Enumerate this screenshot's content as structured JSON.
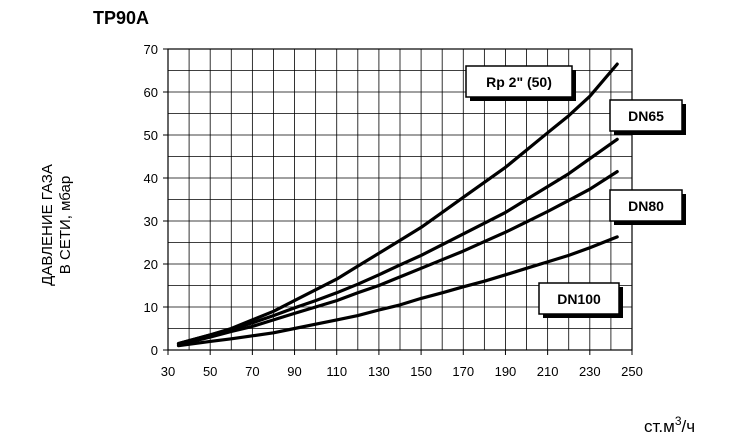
{
  "chart_data": {
    "type": "line",
    "title": "TP90A",
    "ylabel_lines": [
      "ДАВЛЕНИЕ ГАЗА",
      "В СЕТИ, мбар"
    ],
    "xlabel": "ст.м",
    "xlabel_sup": "3",
    "xlabel_tail": "/ч",
    "xlim": [
      30,
      250
    ],
    "ylim": [
      0,
      70
    ],
    "grid": true,
    "xticks": [
      30,
      50,
      70,
      90,
      110,
      130,
      150,
      170,
      190,
      210,
      230,
      250
    ],
    "xtick_labels": [
      "30",
      "50",
      "70",
      "90",
      "110",
      "130",
      "150",
      "170",
      "190",
      "210",
      "230",
      "250"
    ],
    "yticks": [
      0,
      10,
      20,
      30,
      40,
      50,
      60,
      70
    ],
    "ytick_labels": [
      "0",
      "10",
      "20",
      "30",
      "40",
      "50",
      "60",
      "70"
    ],
    "series": [
      {
        "name": "Rp 2\" (50)",
        "x": [
          35,
          50,
          60,
          70,
          80,
          90,
          100,
          110,
          120,
          130,
          140,
          150,
          160,
          170,
          180,
          190,
          200,
          210,
          220,
          230,
          243
        ],
        "y": [
          1.5,
          3.5,
          5,
          7,
          9,
          11.5,
          14,
          16.5,
          19.5,
          22.5,
          25.5,
          28.5,
          32,
          35.5,
          39,
          42.5,
          46.5,
          50.5,
          54.5,
          59,
          66.5
        ]
      },
      {
        "name": "DN65",
        "x": [
          35,
          50,
          60,
          70,
          80,
          90,
          100,
          110,
          120,
          130,
          140,
          150,
          160,
          170,
          180,
          190,
          200,
          210,
          220,
          230,
          243
        ],
        "y": [
          1.5,
          3.5,
          4.8,
          6.3,
          8,
          9.8,
          11.5,
          13.3,
          15.3,
          17.5,
          19.8,
          22,
          24.5,
          27,
          29.5,
          32,
          35,
          38,
          41,
          44.5,
          49
        ]
      },
      {
        "name": "DN80",
        "x": [
          35,
          50,
          60,
          70,
          80,
          90,
          100,
          110,
          120,
          130,
          140,
          150,
          160,
          170,
          180,
          190,
          200,
          210,
          220,
          230,
          243
        ],
        "y": [
          1.2,
          3,
          4.3,
          5.5,
          7,
          8.5,
          10,
          11.5,
          13.3,
          15,
          17,
          19,
          21,
          23,
          25.2,
          27.4,
          29.8,
          32.2,
          34.8,
          37.4,
          41.5
        ]
      },
      {
        "name": "DN100",
        "x": [
          35,
          50,
          60,
          70,
          80,
          90,
          100,
          110,
          120,
          130,
          140,
          150,
          160,
          170,
          180,
          190,
          200,
          210,
          220,
          230,
          243
        ],
        "y": [
          1,
          2,
          2.6,
          3.3,
          4,
          5,
          6,
          7,
          8,
          9.3,
          10.5,
          12,
          13.3,
          14.7,
          16,
          17.5,
          19,
          20.5,
          22,
          23.8,
          26.3
        ]
      }
    ],
    "labels": [
      "Rp 2\" (50)",
      "DN65",
      "DN80",
      "DN100"
    ]
  }
}
